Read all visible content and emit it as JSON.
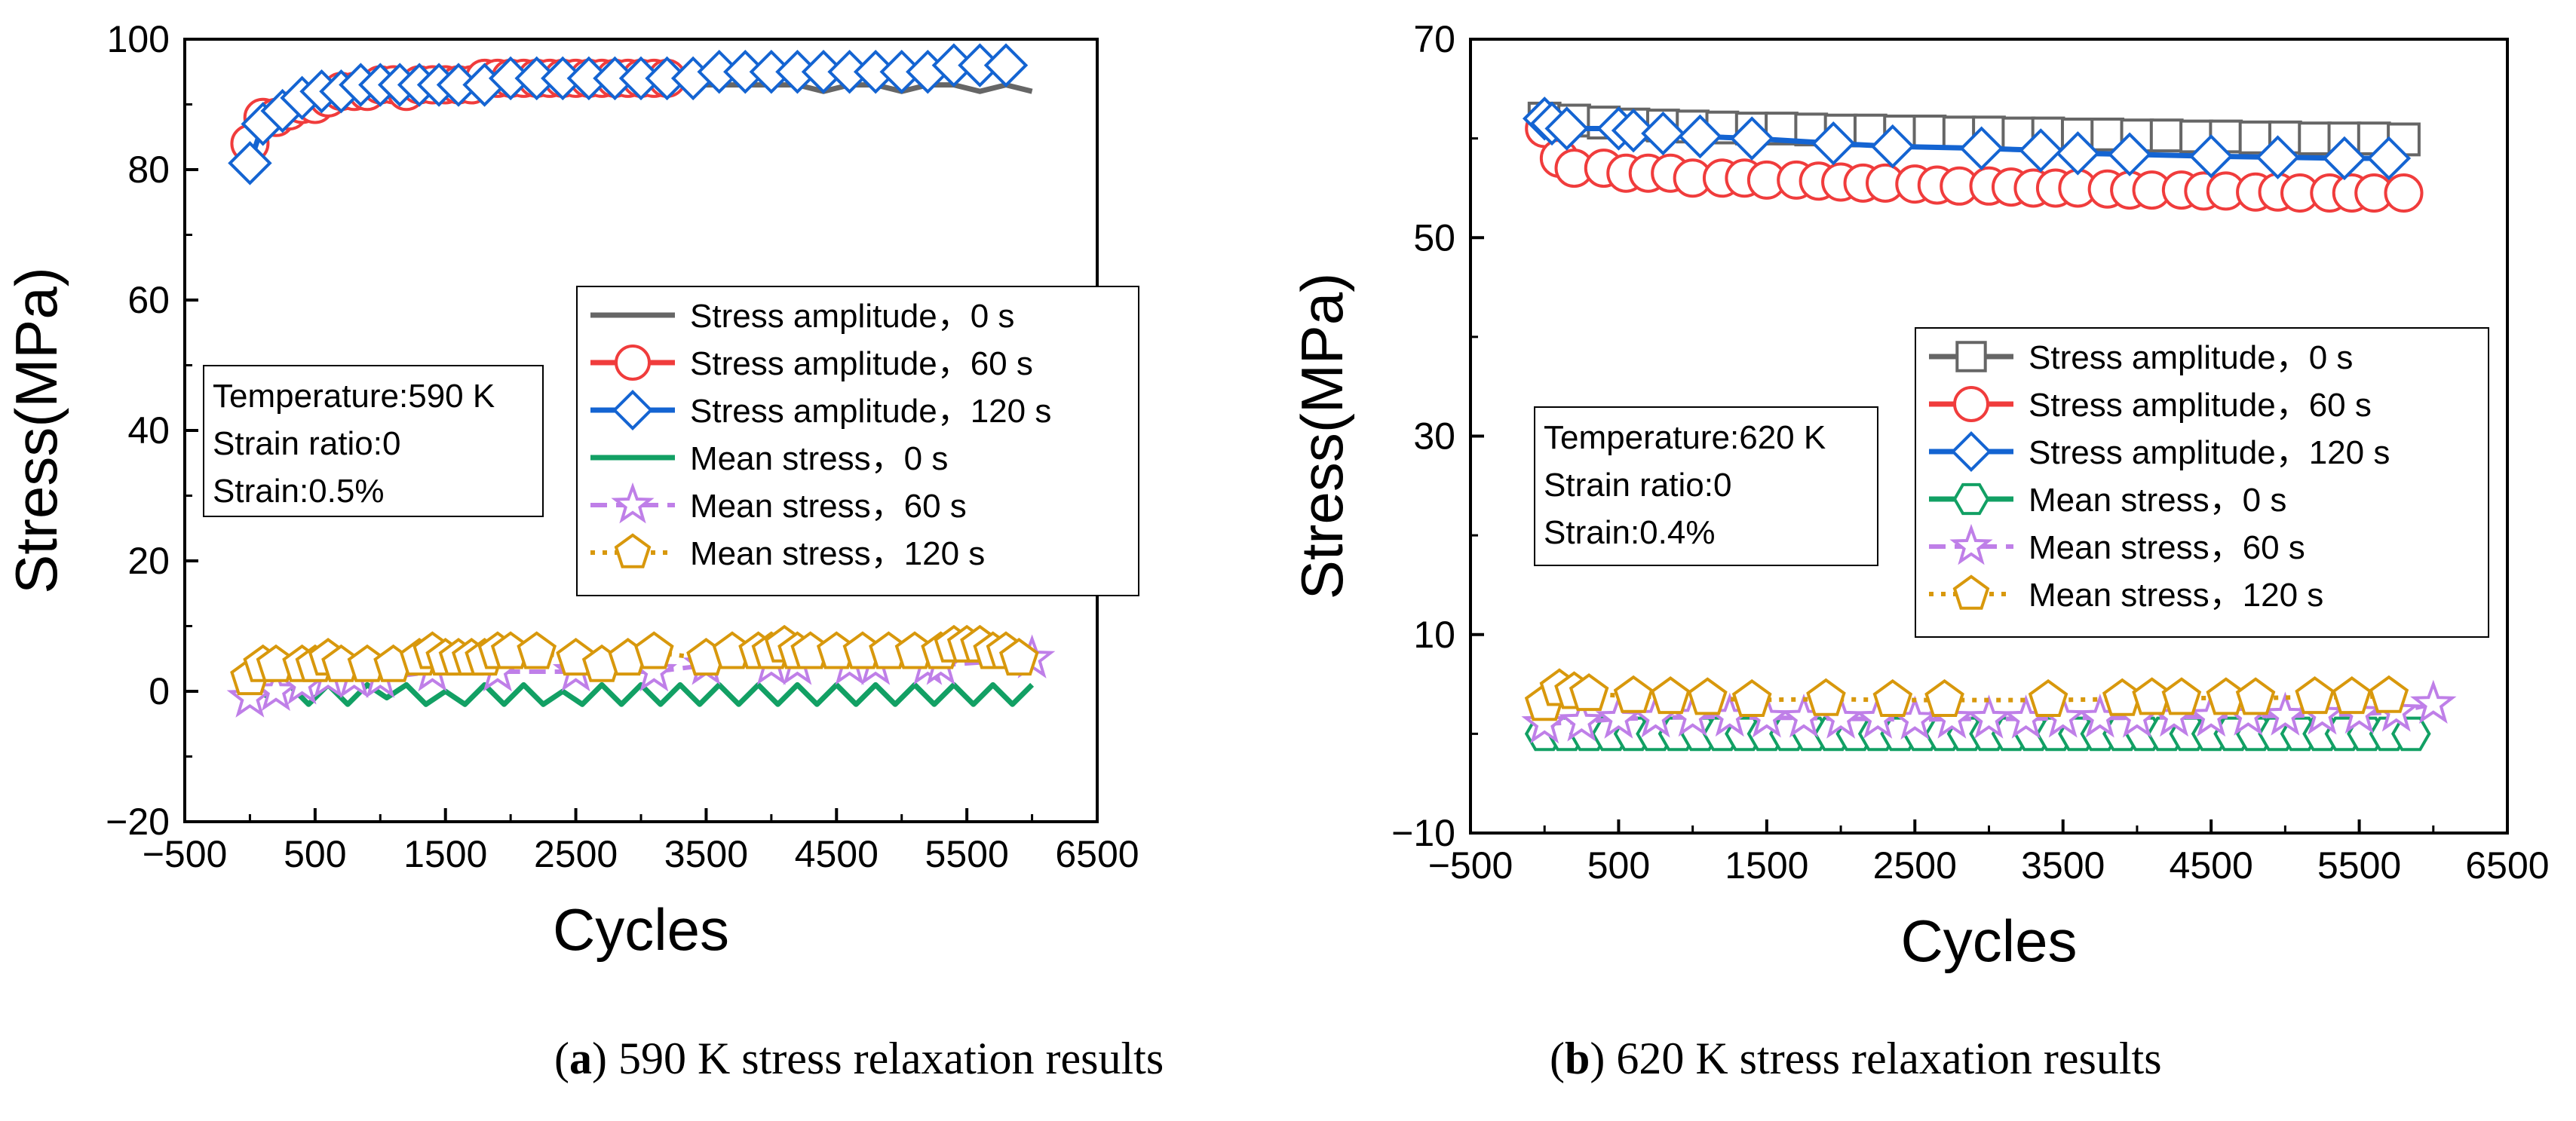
{
  "colors": {
    "stress_amp_0s": "#666666",
    "stress_amp_60s": "#f03c3c",
    "stress_amp_120s": "#1464d2",
    "mean_0s": "#12a064",
    "mean_60s": "#bf7fe8",
    "mean_120s": "#d8980c"
  },
  "chart_data": [
    {
      "type": "line",
      "caption_letter": "a",
      "caption_text": " 590 K stress relaxation results",
      "xlabel": "Cycles",
      "ylabel": "Stress(MPa)",
      "xlim": [
        -500,
        6500
      ],
      "ylim": [
        -20,
        100
      ],
      "xticks": [
        -500,
        500,
        1500,
        2500,
        3500,
        4500,
        5500,
        6500
      ],
      "xtick_labels": [
        "−500",
        "500",
        "1500",
        "2500",
        "3500",
        "4500",
        "5500",
        "6500"
      ],
      "yticks": [
        -20,
        0,
        20,
        40,
        60,
        80,
        100
      ],
      "ytick_labels": [
        "−20",
        "0",
        "20",
        "40",
        "60",
        "80",
        "100"
      ],
      "info_box": [
        "Temperature:590 K",
        "Strain ratio:0",
        "Strain:0.5%"
      ],
      "legend": [
        "Stress amplitude，0 s",
        "Stress amplitude，60 s",
        "Stress amplitude，120 s",
        "Mean stress，0 s",
        "Mean stress，60 s",
        "Mean stress，120 s"
      ],
      "series": [
        {
          "name": "Stress amplitude，0 s",
          "x": [
            0,
            100,
            200,
            400,
            600,
            800,
            1000,
            1200,
            1400,
            1600,
            1800,
            2000,
            2200,
            2400,
            2600,
            2800,
            3000,
            3200,
            3400,
            3600,
            3800,
            4000,
            4200,
            4400,
            4600,
            4800,
            5000,
            5200,
            5400,
            5600,
            5800,
            6000
          ],
          "y": [
            84,
            86,
            88,
            90,
            91,
            92,
            92,
            92,
            93,
            93,
            92,
            93,
            93,
            92,
            93,
            93,
            92,
            93,
            93,
            93,
            93,
            93,
            93,
            92,
            93,
            93,
            92,
            93,
            93,
            92,
            93,
            92
          ]
        },
        {
          "name": "Stress amplitude，60 s",
          "x": [
            0,
            100,
            200,
            300,
            400,
            500,
            600,
            700,
            800,
            900,
            1000,
            1100,
            1200,
            1300,
            1400,
            1500,
            1600,
            1700,
            1800,
            1900,
            2000,
            2100,
            2200,
            2300,
            2400,
            2500,
            2600,
            2700,
            2800,
            2900,
            3000,
            3100,
            3200
          ],
          "y": [
            84,
            88,
            88,
            89,
            90,
            90,
            91,
            92,
            92,
            92,
            93,
            93,
            92,
            93,
            93,
            93,
            93,
            93,
            94,
            94,
            94,
            94,
            94,
            94,
            94,
            94,
            94,
            94,
            94,
            94,
            94,
            94,
            94
          ]
        },
        {
          "name": "Stress amplitude，120 s",
          "x": [
            0,
            100,
            250,
            400,
            550,
            700,
            850,
            1000,
            1150,
            1300,
            1450,
            1600,
            1800,
            2000,
            2200,
            2400,
            2600,
            2800,
            3000,
            3200,
            3400,
            3600,
            3800,
            4000,
            4200,
            4400,
            4600,
            4800,
            5000,
            5200,
            5400,
            5600,
            5800
          ],
          "y": [
            81,
            87,
            89,
            91,
            92,
            92,
            93,
            93,
            93,
            93,
            93,
            93,
            93,
            94,
            94,
            94,
            94,
            94,
            94,
            94,
            94,
            95,
            95,
            95,
            95,
            95,
            95,
            95,
            95,
            95,
            96,
            96,
            96
          ]
        },
        {
          "name": "Mean stress，0 s",
          "x": [
            0,
            150,
            300,
            450,
            600,
            750,
            900,
            1050,
            1200,
            1350,
            1500,
            1650,
            1800,
            1950,
            2100,
            2250,
            2400,
            2550,
            2700,
            2850,
            3000,
            3150,
            3300,
            3450,
            3600,
            3750,
            3900,
            4050,
            4200,
            4350,
            4500,
            4650,
            4800,
            4950,
            5100,
            5250,
            5400,
            5550,
            5700,
            5850,
            6000
          ],
          "y": [
            1,
            -1,
            1,
            -2,
            1,
            -2,
            1,
            -1,
            1,
            -2,
            0,
            -2,
            1,
            -2,
            1,
            -2,
            0,
            -2,
            1,
            -2,
            1,
            -2,
            1,
            -2,
            1,
            -2,
            1,
            -2,
            1,
            -2,
            1,
            -2,
            1,
            -2,
            1,
            -2,
            1,
            -2,
            1,
            -2,
            1
          ]
        },
        {
          "name": "Mean stress，60 s",
          "x": [
            0,
            200,
            400,
            600,
            800,
            1000,
            1400,
            1900,
            2500,
            3100,
            3500,
            4000,
            4200,
            4600,
            4800,
            5200,
            5300,
            6000
          ],
          "y": [
            -1,
            0,
            1,
            2,
            2,
            2,
            3,
            3,
            3,
            3,
            4,
            4,
            4,
            4,
            4,
            4,
            4,
            5
          ]
        },
        {
          "name": "Mean stress，120 s",
          "x": [
            0,
            100,
            200,
            400,
            500,
            600,
            700,
            900,
            1100,
            1300,
            1400,
            1500,
            1600,
            1700,
            1800,
            1900,
            2000,
            2200,
            2500,
            2700,
            2900,
            3100,
            3500,
            3700,
            3900,
            4000,
            4100,
            4200,
            4300,
            4500,
            4700,
            4900,
            5100,
            5300,
            5400,
            5500,
            5600,
            5700,
            5800,
            5900
          ],
          "y": [
            2,
            4,
            4,
            4,
            4,
            5,
            4,
            4,
            4,
            5,
            6,
            5,
            5,
            5,
            5,
            6,
            6,
            6,
            5,
            4,
            5,
            6,
            5,
            6,
            6,
            6,
            7,
            6,
            6,
            6,
            6,
            6,
            6,
            6,
            7,
            7,
            7,
            6,
            6,
            5
          ]
        }
      ]
    },
    {
      "type": "line",
      "caption_letter": "b",
      "caption_text": " 620 K stress relaxation results",
      "xlabel": "Cycles",
      "ylabel": "Stress(MPa)",
      "xlim": [
        -500,
        6500
      ],
      "ylim": [
        -10,
        70
      ],
      "xticks": [
        -500,
        500,
        1500,
        2500,
        3500,
        4500,
        5500,
        6500
      ],
      "xtick_labels": [
        "−500",
        "500",
        "1500",
        "2500",
        "3500",
        "4500",
        "5500",
        "6500"
      ],
      "yticks": [
        -10,
        10,
        30,
        50,
        70
      ],
      "ytick_labels": [
        "−10",
        "10",
        "30",
        "50",
        "70"
      ],
      "info_box": [
        "Temperature:620 K",
        "Strain ratio:0",
        "Strain:0.4%"
      ],
      "legend": [
        "Stress amplitude，0 s",
        "Stress amplitude，60 s",
        "Stress amplitude，120 s",
        "Mean stress，0 s",
        "Mean stress，60 s",
        "Mean stress，120 s"
      ],
      "series": [
        {
          "name": "Stress amplitude，0 s",
          "x": [
            0,
            200,
            400,
            600,
            800,
            1000,
            1200,
            1400,
            1600,
            1800,
            2000,
            2200,
            2400,
            2600,
            2800,
            3000,
            3200,
            3400,
            3600,
            3800,
            4000,
            4200,
            4400,
            4600,
            4800,
            5000,
            5200,
            5400,
            5600,
            5800
          ],
          "y": [
            62,
            61.8,
            61.6,
            61.4,
            61.3,
            61.2,
            61.1,
            61.0,
            61.0,
            60.9,
            60.8,
            60.8,
            60.7,
            60.7,
            60.6,
            60.6,
            60.5,
            60.5,
            60.4,
            60.4,
            60.3,
            60.3,
            60.2,
            60.2,
            60.1,
            60.1,
            60.0,
            60.0,
            60.0,
            59.9
          ]
        },
        {
          "name": "Stress amplitude，60 s",
          "x": [
            0,
            100,
            200,
            400,
            550,
            700,
            850,
            1000,
            1200,
            1350,
            1500,
            1700,
            1850,
            2000,
            2150,
            2300,
            2500,
            2650,
            2800,
            3000,
            3150,
            3300,
            3450,
            3600,
            3800,
            3950,
            4100,
            4300,
            4450,
            4600,
            4800,
            4950,
            5100,
            5300,
            5450,
            5600,
            5800
          ],
          "y": [
            61,
            58,
            57,
            57,
            56.5,
            56.5,
            56.5,
            56,
            56,
            56,
            55.8,
            55.8,
            55.7,
            55.6,
            55.5,
            55.5,
            55.4,
            55.3,
            55.2,
            55.2,
            55.1,
            55.0,
            55.0,
            55.0,
            54.9,
            54.8,
            54.8,
            54.8,
            54.7,
            54.7,
            54.6,
            54.6,
            54.5,
            54.5,
            54.5,
            54.5,
            54.5
          ]
        },
        {
          "name": "Stress amplitude，120 s",
          "x": [
            0,
            50,
            150,
            500,
            600,
            800,
            1050,
            1400,
            1950,
            2350,
            2950,
            3350,
            3600,
            3950,
            4500,
            4950,
            5400,
            5700
          ],
          "y": [
            62,
            61.5,
            61,
            61,
            60.8,
            60.5,
            60.2,
            60,
            59.5,
            59.2,
            59,
            58.8,
            58.5,
            58.4,
            58.2,
            58.1,
            58.0,
            58.0
          ]
        },
        {
          "name": "Mean stress，0 s",
          "x": [
            0,
            150,
            300,
            450,
            600,
            750,
            900,
            1050,
            1200,
            1350,
            1500,
            1650,
            1800,
            1950,
            2100,
            2250,
            2400,
            2550,
            2700,
            2850,
            3000,
            3150,
            3300,
            3450,
            3600,
            3750,
            3900,
            4050,
            4200,
            4350,
            4500,
            4650,
            4800,
            4950,
            5100,
            5250,
            5400,
            5550,
            5700,
            5850
          ],
          "y": [
            0,
            0,
            0,
            0,
            0,
            0,
            0,
            0,
            0,
            0,
            0,
            0,
            0,
            0,
            0,
            0,
            0,
            0,
            0,
            0,
            0,
            0,
            0,
            0,
            0,
            0,
            0,
            0,
            0,
            0,
            0,
            0,
            0,
            0,
            0,
            0,
            0,
            0,
            0,
            0
          ]
        },
        {
          "name": "Mean stress，60 s",
          "x": [
            0,
            250,
            500,
            750,
            1000,
            1250,
            1500,
            1750,
            2000,
            2250,
            2500,
            2750,
            3000,
            3250,
            3500,
            3750,
            4000,
            4250,
            4500,
            4750,
            5000,
            5250,
            5500,
            5750,
            6000
          ],
          "y": [
            1,
            1.2,
            1.5,
            1.6,
            1.7,
            1.7,
            1.6,
            1.6,
            1.5,
            1.5,
            1.4,
            1.5,
            1.5,
            1.5,
            1.6,
            1.6,
            1.6,
            1.7,
            1.7,
            1.8,
            1.8,
            1.9,
            2.0,
            2.2,
            3.0
          ]
        },
        {
          "name": "Mean stress，120 s",
          "x": [
            0,
            100,
            200,
            300,
            600,
            850,
            1100,
            1400,
            1900,
            2350,
            2700,
            3400,
            3900,
            4100,
            4300,
            4600,
            4800,
            5200,
            5450,
            5700
          ],
          "y": [
            3,
            4.5,
            4.2,
            4,
            3.8,
            3.7,
            3.6,
            3.4,
            3.5,
            3.4,
            3.4,
            3.4,
            3.5,
            3.6,
            3.6,
            3.6,
            3.6,
            3.7,
            3.7,
            3.8
          ]
        }
      ]
    }
  ]
}
